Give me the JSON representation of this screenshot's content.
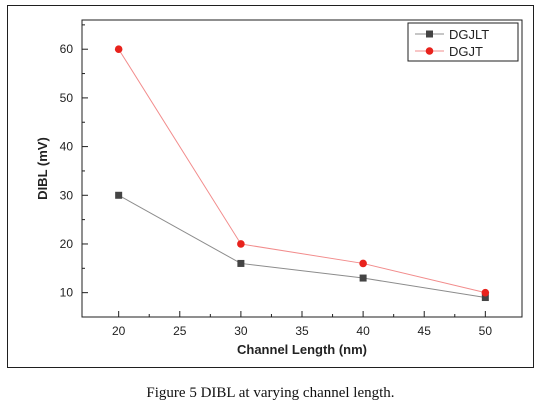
{
  "caption": "Figure 5  DIBL at varying channel length.",
  "chart_data": {
    "type": "line",
    "xlabel": "Channel Length (nm)",
    "ylabel": "DIBL (mV)",
    "xlim": [
      17,
      53
    ],
    "ylim": [
      5,
      66
    ],
    "xticks": [
      20,
      25,
      30,
      35,
      40,
      45,
      50
    ],
    "yticks": [
      10,
      20,
      30,
      40,
      50,
      60
    ],
    "grid": false,
    "legend_position": "top-right",
    "series": [
      {
        "name": "DGJLT",
        "marker": "square",
        "color": "#444444",
        "line_color": "#8c8c8c",
        "x": [
          20,
          30,
          40,
          50
        ],
        "y": [
          30,
          16,
          13,
          9
        ]
      },
      {
        "name": "DGJT",
        "marker": "circle",
        "color": "#e8221c",
        "line_color": "#f28c8c",
        "x": [
          20,
          30,
          40,
          50
        ],
        "y": [
          60,
          20,
          16,
          10
        ]
      }
    ]
  }
}
